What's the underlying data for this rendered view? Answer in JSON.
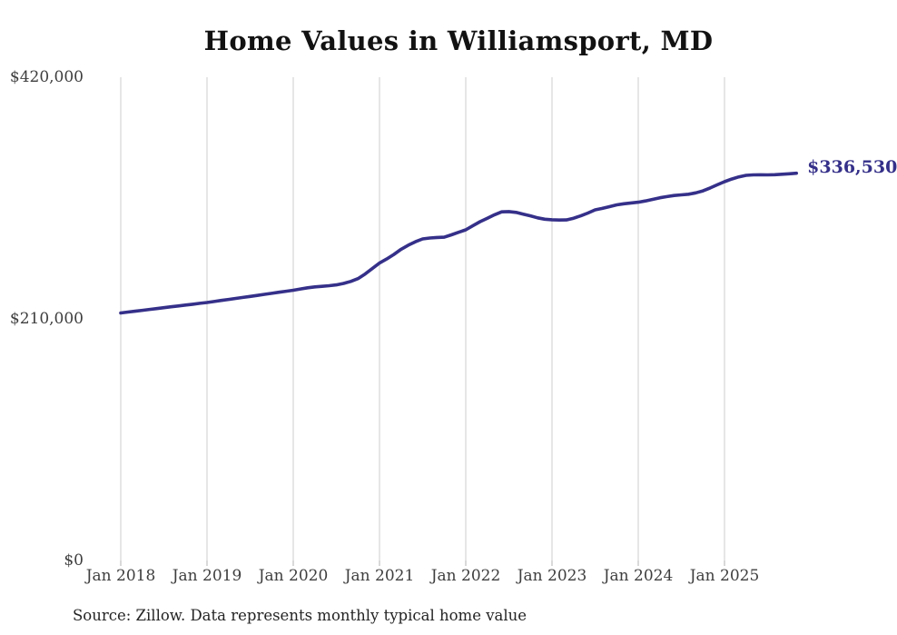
{
  "chart": {
    "title": "Home Values in Williamsport, MD",
    "end_label": "$336,530",
    "source_note": "Source: Zillow. Data represents monthly typical home value"
  },
  "chart_data": {
    "type": "line",
    "title": "Home Values in Williamsport, MD",
    "xlabel": "",
    "ylabel": "",
    "x_unit": "month",
    "grid": "vertical-only",
    "legend": "none",
    "latest_value_label": "$336,530",
    "source": "Source: Zillow. Data represents monthly typical home value",
    "y_axis": {
      "min": 0,
      "max": 420000,
      "ticks": [
        {
          "value": 420000,
          "label": "$420,000"
        },
        {
          "value": 210000,
          "label": "$210,000"
        },
        {
          "value": 0,
          "label": "$0"
        }
      ]
    },
    "x_ticks": [
      {
        "month": "2018-01",
        "label": "Jan 2018"
      },
      {
        "month": "2019-01",
        "label": "Jan 2019"
      },
      {
        "month": "2020-01",
        "label": "Jan 2020"
      },
      {
        "month": "2021-01",
        "label": "Jan 2021"
      },
      {
        "month": "2022-01",
        "label": "Jan 2022"
      },
      {
        "month": "2023-01",
        "label": "Jan 2023"
      },
      {
        "month": "2024-01",
        "label": "Jan 2024"
      },
      {
        "month": "2025-01",
        "label": "Jan 2025"
      }
    ],
    "months": [
      "2018-01",
      "2018-02",
      "2018-03",
      "2018-04",
      "2018-05",
      "2018-06",
      "2018-07",
      "2018-08",
      "2018-09",
      "2018-10",
      "2018-11",
      "2018-12",
      "2019-01",
      "2019-02",
      "2019-03",
      "2019-04",
      "2019-05",
      "2019-06",
      "2019-07",
      "2019-08",
      "2019-09",
      "2019-10",
      "2019-11",
      "2019-12",
      "2020-01",
      "2020-02",
      "2020-03",
      "2020-04",
      "2020-05",
      "2020-06",
      "2020-07",
      "2020-08",
      "2020-09",
      "2020-10",
      "2020-11",
      "2020-12",
      "2021-01",
      "2021-02",
      "2021-03",
      "2021-04",
      "2021-05",
      "2021-06",
      "2021-07",
      "2021-08",
      "2021-09",
      "2021-10",
      "2021-11",
      "2021-12",
      "2022-01",
      "2022-02",
      "2022-03",
      "2022-04",
      "2022-05",
      "2022-06",
      "2022-07",
      "2022-08",
      "2022-09",
      "2022-10",
      "2022-11",
      "2022-12",
      "2023-01",
      "2023-02",
      "2023-03",
      "2023-04",
      "2023-05",
      "2023-06",
      "2023-07",
      "2023-08",
      "2023-09",
      "2023-10",
      "2023-11",
      "2023-12",
      "2024-01",
      "2024-02",
      "2024-03",
      "2024-04",
      "2024-05",
      "2024-06",
      "2024-07",
      "2024-08",
      "2024-09",
      "2024-10",
      "2024-11",
      "2024-12",
      "2025-01",
      "2025-02",
      "2025-03",
      "2025-04",
      "2025-05",
      "2025-06",
      "2025-07",
      "2025-08",
      "2025-09",
      "2025-10",
      "2025-11"
    ],
    "values": [
      215100,
      215900,
      216600,
      217400,
      218200,
      218900,
      219700,
      220500,
      221200,
      222000,
      222700,
      223500,
      224200,
      225100,
      226000,
      226900,
      227800,
      228600,
      229500,
      230400,
      231300,
      232200,
      233100,
      234000,
      234900,
      236000,
      237000,
      237800,
      238300,
      238800,
      239500,
      240800,
      242500,
      245000,
      249000,
      253700,
      258500,
      262000,
      266000,
      270500,
      274000,
      277000,
      279500,
      280300,
      280700,
      281000,
      283000,
      285200,
      287400,
      291000,
      294500,
      297500,
      300500,
      303000,
      303200,
      302500,
      301000,
      299500,
      297800,
      296600,
      296100,
      295900,
      296000,
      297500,
      299500,
      302000,
      304700,
      306000,
      307500,
      309100,
      310000,
      310700,
      311400,
      312500,
      313800,
      315200,
      316300,
      317200,
      317800,
      318300,
      319500,
      321200,
      323800,
      326500,
      329200,
      331500,
      333400,
      334700,
      335100,
      335200,
      335100,
      335300,
      335700,
      336100,
      336530
    ],
    "colors": {
      "line": "#353089",
      "end_label": "#353089",
      "grid": "#cccccc",
      "tick": "#b3b3b3",
      "axis_text": "#3e3e3e",
      "title": "#121212",
      "source_text": "#242424",
      "background": "#ffffff"
    }
  }
}
